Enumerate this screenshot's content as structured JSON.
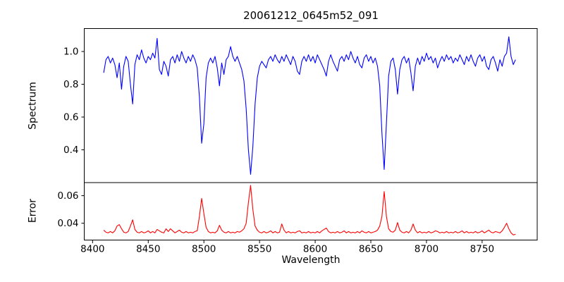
{
  "figure": {
    "title": "20061212_0645m52_091",
    "background": "#ffffff",
    "axes_color": "#000000"
  },
  "chart_data": [
    {
      "type": "line",
      "panel": "spectrum",
      "ylabel": "Spectrum",
      "line_color": "#0000ff",
      "grid": false,
      "legend": null,
      "xlim": [
        8392.5,
        8799.5
      ],
      "ylim": [
        0.2,
        1.14
      ],
      "yticks": [
        0.4,
        0.6,
        0.8,
        1.0
      ],
      "ytick_labels": [
        "0.4",
        "0.6",
        "0.8",
        "1.0"
      ],
      "x_start": 8410,
      "x_step": 2,
      "values": [
        0.87,
        0.95,
        0.97,
        0.93,
        0.96,
        0.92,
        0.84,
        0.93,
        0.77,
        0.91,
        0.97,
        0.94,
        0.8,
        0.68,
        0.92,
        0.98,
        0.95,
        1.01,
        0.96,
        0.93,
        0.97,
        0.95,
        0.99,
        0.96,
        1.08,
        0.89,
        0.86,
        0.94,
        0.91,
        0.85,
        0.95,
        0.97,
        0.93,
        0.98,
        0.94,
        1.0,
        0.96,
        0.93,
        0.97,
        0.94,
        0.98,
        0.95,
        0.9,
        0.72,
        0.44,
        0.56,
        0.84,
        0.93,
        0.96,
        0.93,
        0.97,
        0.9,
        0.79,
        0.93,
        0.86,
        0.95,
        0.97,
        1.03,
        0.97,
        0.94,
        0.97,
        0.93,
        0.89,
        0.82,
        0.65,
        0.4,
        0.25,
        0.42,
        0.68,
        0.84,
        0.91,
        0.94,
        0.92,
        0.9,
        0.95,
        0.97,
        0.94,
        0.98,
        0.95,
        0.93,
        0.97,
        0.94,
        0.98,
        0.95,
        0.92,
        0.97,
        0.94,
        0.88,
        0.86,
        0.94,
        0.97,
        0.94,
        0.98,
        0.94,
        0.97,
        0.93,
        0.98,
        0.95,
        0.92,
        0.89,
        0.85,
        0.94,
        0.98,
        0.94,
        0.91,
        0.88,
        0.95,
        0.97,
        0.94,
        0.98,
        0.95,
        1.0,
        0.96,
        0.93,
        0.97,
        0.92,
        0.9,
        0.96,
        0.98,
        0.94,
        0.97,
        0.93,
        0.96,
        0.91,
        0.79,
        0.5,
        0.28,
        0.56,
        0.85,
        0.94,
        0.96,
        0.89,
        0.74,
        0.89,
        0.95,
        0.97,
        0.93,
        0.96,
        0.87,
        0.76,
        0.91,
        0.96,
        0.92,
        0.97,
        0.94,
        0.99,
        0.95,
        0.97,
        0.93,
        0.96,
        0.9,
        0.94,
        0.97,
        0.94,
        0.98,
        0.95,
        0.97,
        0.93,
        0.96,
        0.94,
        0.98,
        0.95,
        0.92,
        0.97,
        0.94,
        0.98,
        0.94,
        0.91,
        0.96,
        0.98,
        0.94,
        0.97,
        0.91,
        0.89,
        0.95,
        0.97,
        0.93,
        0.88,
        0.95,
        0.91,
        0.97,
        0.99,
        1.09,
        0.97,
        0.92,
        0.95
      ],
      "notable_features": [
        {
          "wavelength": 8498,
          "depth": 0.44
        },
        {
          "wavelength": 8542,
          "depth": 0.25
        },
        {
          "wavelength": 8662,
          "depth": 0.28
        }
      ]
    },
    {
      "type": "line",
      "panel": "error",
      "ylabel": "Error",
      "xlabel": "Wavelength",
      "line_color": "#ff0000",
      "grid": false,
      "legend": null,
      "xlim": [
        8392.5,
        8799.5
      ],
      "ylim": [
        0.0278,
        0.0695
      ],
      "yticks": [
        0.04,
        0.06
      ],
      "ytick_labels": [
        "0.04",
        "0.06"
      ],
      "xticks": [
        8400,
        8450,
        8500,
        8550,
        8600,
        8650,
        8700,
        8750
      ],
      "xtick_labels": [
        "8400",
        "8450",
        "8500",
        "8550",
        "8600",
        "8650",
        "8700",
        "8750"
      ],
      "x_start": 8410,
      "x_step": 2,
      "values": [
        0.035,
        0.0335,
        0.033,
        0.034,
        0.033,
        0.0345,
        0.038,
        0.039,
        0.036,
        0.0335,
        0.033,
        0.034,
        0.038,
        0.0425,
        0.0355,
        0.0335,
        0.033,
        0.034,
        0.033,
        0.0335,
        0.0345,
        0.033,
        0.034,
        0.033,
        0.0355,
        0.0345,
        0.0335,
        0.033,
        0.036,
        0.034,
        0.036,
        0.0345,
        0.033,
        0.034,
        0.035,
        0.0335,
        0.033,
        0.034,
        0.033,
        0.0335,
        0.033,
        0.034,
        0.0345,
        0.045,
        0.058,
        0.047,
        0.037,
        0.034,
        0.033,
        0.0335,
        0.033,
        0.0345,
        0.0385,
        0.035,
        0.0335,
        0.033,
        0.034,
        0.033,
        0.0335,
        0.033,
        0.034,
        0.0335,
        0.0345,
        0.036,
        0.04,
        0.055,
        0.0675,
        0.05,
        0.038,
        0.035,
        0.0335,
        0.033,
        0.034,
        0.033,
        0.0335,
        0.0345,
        0.033,
        0.034,
        0.033,
        0.0335,
        0.0395,
        0.035,
        0.033,
        0.034,
        0.033,
        0.0335,
        0.033,
        0.034,
        0.0345,
        0.033,
        0.0335,
        0.033,
        0.034,
        0.033,
        0.0335,
        0.033,
        0.034,
        0.033,
        0.0345,
        0.0355,
        0.0365,
        0.034,
        0.033,
        0.0335,
        0.033,
        0.034,
        0.033,
        0.0335,
        0.0345,
        0.033,
        0.034,
        0.033,
        0.0335,
        0.033,
        0.034,
        0.033,
        0.0345,
        0.0335,
        0.033,
        0.034,
        0.033,
        0.0335,
        0.034,
        0.035,
        0.038,
        0.045,
        0.063,
        0.045,
        0.036,
        0.034,
        0.0335,
        0.035,
        0.0405,
        0.035,
        0.0335,
        0.033,
        0.034,
        0.033,
        0.035,
        0.0395,
        0.035,
        0.033,
        0.034,
        0.033,
        0.0335,
        0.033,
        0.034,
        0.033,
        0.0335,
        0.0345,
        0.034,
        0.033,
        0.0335,
        0.033,
        0.034,
        0.033,
        0.0335,
        0.033,
        0.034,
        0.033,
        0.0335,
        0.0345,
        0.033,
        0.034,
        0.033,
        0.0335,
        0.033,
        0.034,
        0.033,
        0.0335,
        0.0345,
        0.033,
        0.034,
        0.035,
        0.0335,
        0.033,
        0.034,
        0.0335,
        0.033,
        0.0345,
        0.037,
        0.04,
        0.036,
        0.033,
        0.0315,
        0.032
      ],
      "notable_features": [
        {
          "wavelength": 8498,
          "peak": 0.058
        },
        {
          "wavelength": 8542,
          "peak": 0.0675
        },
        {
          "wavelength": 8662,
          "peak": 0.063
        }
      ]
    }
  ]
}
